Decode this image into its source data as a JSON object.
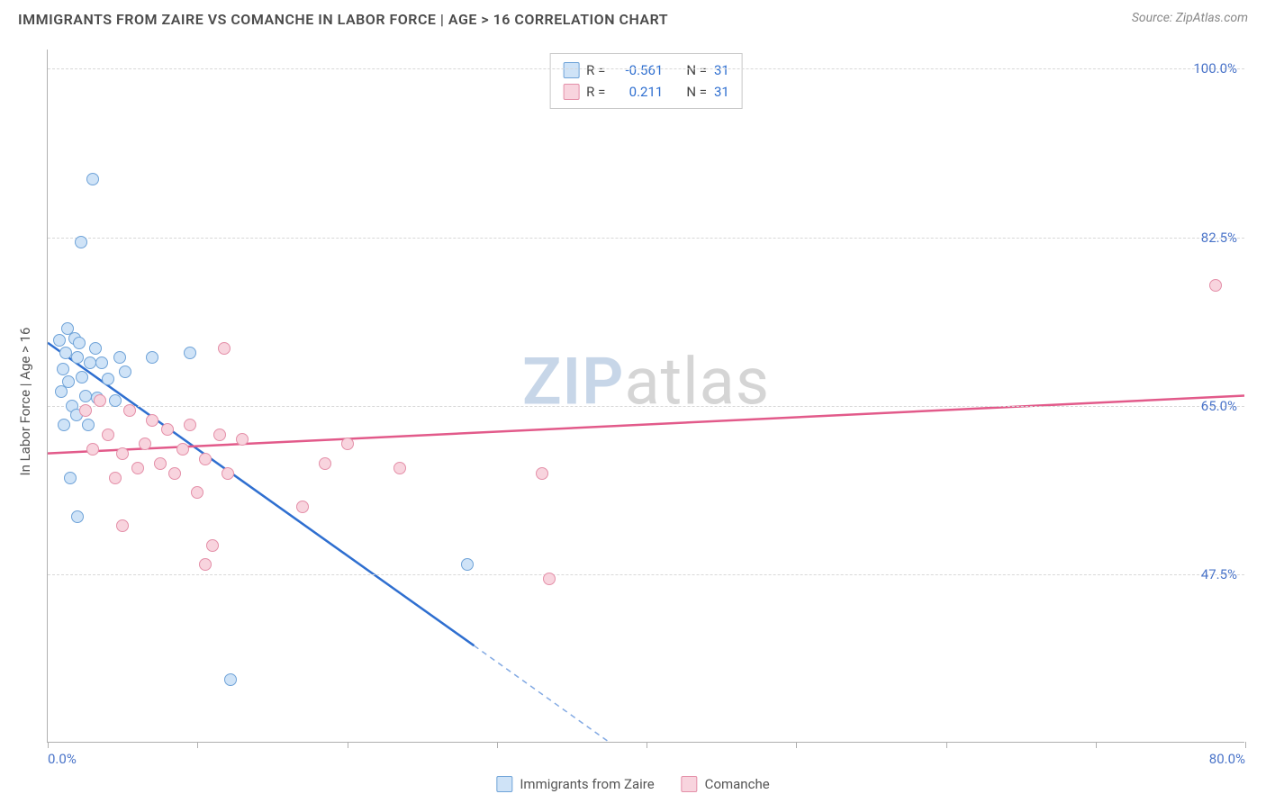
{
  "header": {
    "title": "IMMIGRANTS FROM ZAIRE VS COMANCHE IN LABOR FORCE | AGE > 16 CORRELATION CHART",
    "source_prefix": "Source: ",
    "source_name": "ZipAtlas.com"
  },
  "watermark": {
    "zip": "ZIP",
    "atlas": "atlas",
    "color_zip": "#c7d6e8",
    "color_atlas": "#d5d5d5"
  },
  "chart": {
    "type": "scatter",
    "ylabel": "In Labor Force | Age > 16",
    "xlim": [
      0,
      80
    ],
    "ylim": [
      30,
      102
    ],
    "xtick_step": 10,
    "xtick_labels": {
      "0": "0.0%",
      "80": "80.0%"
    },
    "ytick_values": [
      47.5,
      65.0,
      82.5,
      100.0
    ],
    "ytick_labels": [
      "47.5%",
      "65.0%",
      "82.5%",
      "100.0%"
    ],
    "grid_color": "#d8d8d8",
    "axis_color": "#b0b0b0",
    "tick_label_color": "#4a74c9",
    "background_color": "#ffffff",
    "series": [
      {
        "name": "Immigrants from Zaire",
        "fill": "#cfe3f7",
        "stroke": "#6fa3d8",
        "line_color": "#2f6fd0",
        "R": "-0.561",
        "N": "31",
        "trend": {
          "x1": 0,
          "y1": 71.5,
          "x2_solid": 28.5,
          "y2_solid": 40,
          "x2_dash": 37.5,
          "y2_dash": 30
        },
        "points": [
          [
            1.2,
            70.5
          ],
          [
            1.0,
            68.8
          ],
          [
            1.4,
            67.5
          ],
          [
            1.8,
            72.0
          ],
          [
            2.0,
            70.0
          ],
          [
            2.3,
            68.0
          ],
          [
            2.8,
            69.5
          ],
          [
            2.5,
            66.0
          ],
          [
            1.6,
            65.0
          ],
          [
            1.1,
            63.0
          ],
          [
            3.0,
            88.5
          ],
          [
            2.2,
            82.0
          ],
          [
            0.8,
            71.8
          ],
          [
            3.2,
            71.0
          ],
          [
            3.6,
            69.5
          ],
          [
            4.0,
            67.8
          ],
          [
            4.5,
            65.5
          ],
          [
            4.8,
            70.0
          ],
          [
            1.5,
            57.5
          ],
          [
            2.0,
            53.5
          ],
          [
            7.0,
            70.0
          ],
          [
            9.5,
            70.5
          ],
          [
            12.2,
            36.5
          ],
          [
            28.0,
            48.5
          ],
          [
            1.9,
            64.0
          ],
          [
            2.7,
            63.0
          ],
          [
            3.3,
            65.8
          ],
          [
            0.9,
            66.5
          ],
          [
            1.3,
            73.0
          ],
          [
            2.1,
            71.5
          ],
          [
            5.2,
            68.5
          ]
        ]
      },
      {
        "name": "Comanche",
        "fill": "#f8d4de",
        "stroke": "#e48fa8",
        "line_color": "#e25a8a",
        "R": "0.211",
        "N": "31",
        "trend": {
          "x1": 0,
          "y1": 60.0,
          "x2_solid": 80,
          "y2_solid": 66.0
        },
        "points": [
          [
            2.5,
            64.5
          ],
          [
            3.5,
            65.5
          ],
          [
            4.0,
            62.0
          ],
          [
            5.0,
            60.0
          ],
          [
            5.5,
            64.5
          ],
          [
            6.0,
            58.5
          ],
          [
            6.5,
            61.0
          ],
          [
            7.5,
            59.0
          ],
          [
            8.0,
            62.5
          ],
          [
            9.0,
            60.5
          ],
          [
            9.5,
            63.0
          ],
          [
            10.0,
            56.0
          ],
          [
            10.5,
            59.5
          ],
          [
            11.5,
            62.0
          ],
          [
            12.0,
            58.0
          ],
          [
            13.0,
            61.5
          ],
          [
            5.0,
            52.5
          ],
          [
            10.5,
            48.5
          ],
          [
            11.0,
            50.5
          ],
          [
            11.8,
            71.0
          ],
          [
            17.0,
            54.5
          ],
          [
            18.5,
            59.0
          ],
          [
            20.0,
            61.0
          ],
          [
            23.5,
            58.5
          ],
          [
            33.0,
            58.0
          ],
          [
            33.5,
            47.0
          ],
          [
            78.0,
            77.5
          ],
          [
            3.0,
            60.5
          ],
          [
            4.5,
            57.5
          ],
          [
            7.0,
            63.5
          ],
          [
            8.5,
            58.0
          ]
        ]
      }
    ],
    "legend_top": {
      "r_label": "R =",
      "n_label": "N =",
      "text_color": "#444444",
      "value_color": "#2f6fd0"
    },
    "legend_bottom": {
      "items": [
        "Immigrants from Zaire",
        "Comanche"
      ]
    }
  }
}
